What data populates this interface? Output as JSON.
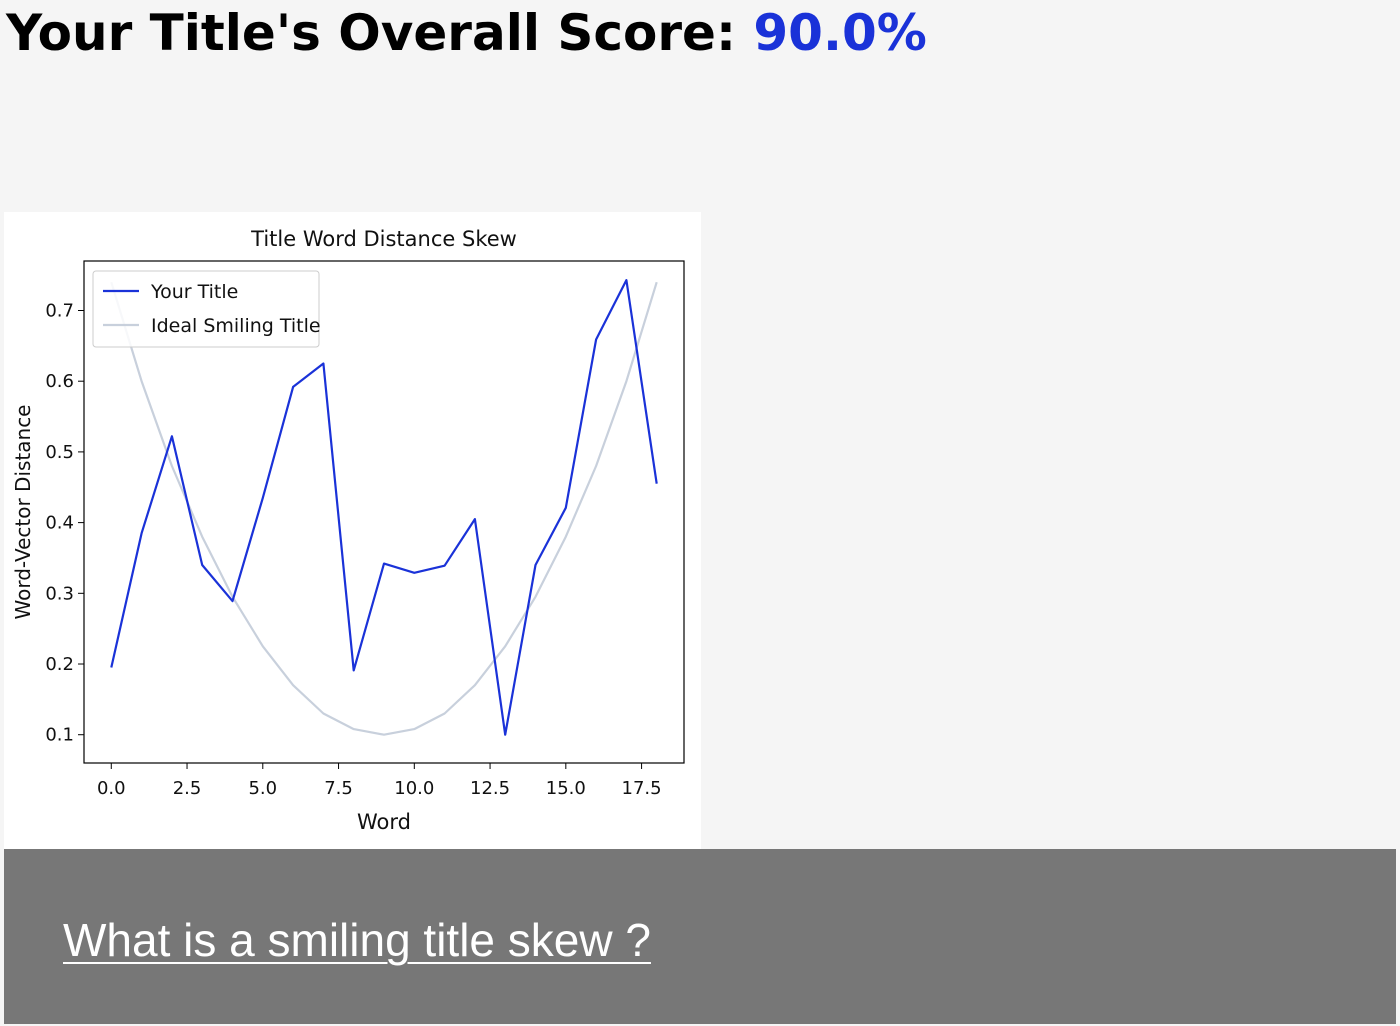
{
  "header": {
    "score_label": "Your Title's Overall Score: ",
    "score_value": "90.0%"
  },
  "colors": {
    "score_accent": "#1a32d8",
    "your_title_line": "#1a32d8",
    "ideal_line": "#c8d0dc",
    "footer_background": "#777777"
  },
  "chart_data": {
    "type": "line",
    "title": "Title Word Distance Skew",
    "xlabel": "Word",
    "ylabel": "Word-Vector Distance",
    "xlim": [
      -0.9,
      18.9
    ],
    "ylim": [
      0.06,
      0.77
    ],
    "x_ticks": [
      0.0,
      2.5,
      5.0,
      7.5,
      10.0,
      12.5,
      15.0,
      17.5
    ],
    "x_tick_labels": [
      "0.0",
      "2.5",
      "5.0",
      "7.5",
      "10.0",
      "12.5",
      "15.0",
      "17.5"
    ],
    "y_ticks": [
      0.1,
      0.2,
      0.3,
      0.4,
      0.5,
      0.6,
      0.7
    ],
    "y_tick_labels": [
      "0.1",
      "0.2",
      "0.3",
      "0.4",
      "0.5",
      "0.6",
      "0.7"
    ],
    "grid": false,
    "legend_position": "top-left",
    "series": [
      {
        "name": "Your Title",
        "color": "#1a32d8",
        "x": [
          0,
          1,
          2,
          3,
          4,
          5,
          6,
          7,
          8,
          9,
          10,
          11,
          12,
          13,
          14,
          15,
          16,
          17,
          18
        ],
        "values": [
          0.195,
          0.385,
          0.522,
          0.34,
          0.289,
          0.435,
          0.592,
          0.625,
          0.191,
          0.342,
          0.329,
          0.339,
          0.405,
          0.1,
          0.34,
          0.421,
          0.659,
          0.743,
          0.455
        ]
      },
      {
        "name": "Ideal Smiling Title",
        "color": "#c8d0dc",
        "x": [
          0,
          1,
          2,
          3,
          4,
          5,
          6,
          7,
          8,
          9,
          10,
          11,
          12,
          13,
          14,
          15,
          16,
          17,
          18
        ],
        "values": [
          0.74,
          0.6,
          0.48,
          0.38,
          0.295,
          0.225,
          0.17,
          0.13,
          0.108,
          0.1,
          0.108,
          0.13,
          0.17,
          0.225,
          0.295,
          0.38,
          0.48,
          0.6,
          0.74
        ]
      }
    ]
  },
  "footer": {
    "link_text": "What is a smiling title skew ?"
  }
}
